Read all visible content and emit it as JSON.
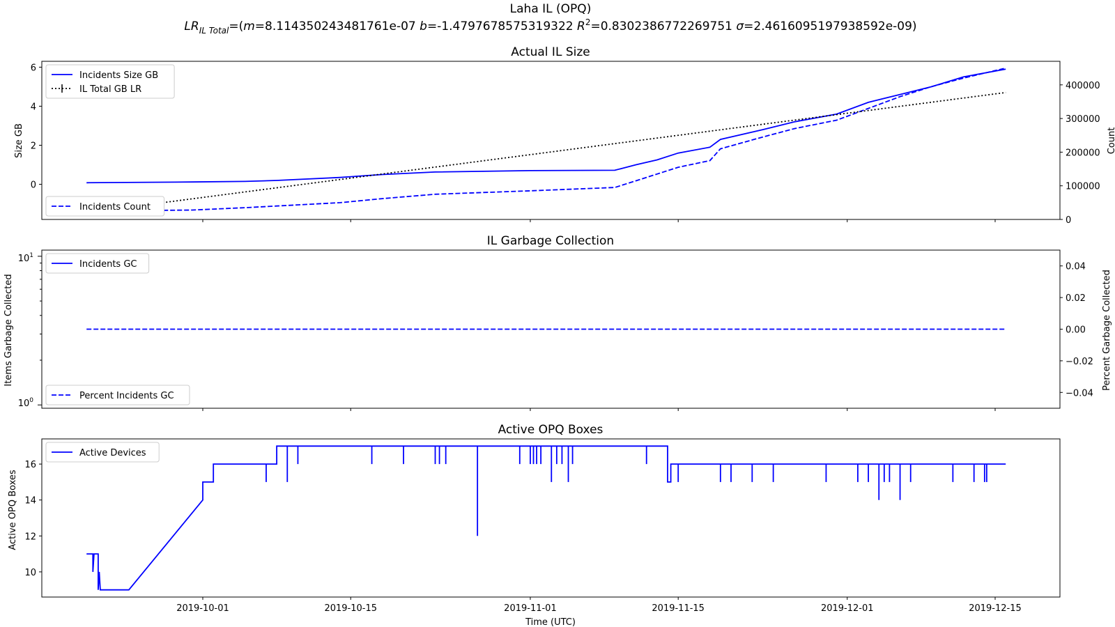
{
  "figure": {
    "title": "Laha IL (OPQ)",
    "subtitle": {
      "lr": "LR",
      "lr_sub": "IL Total",
      "eq_open": "=(",
      "m_label": "m",
      "m_value": "=8.114350243481761e-07 ",
      "b_label": "b",
      "b_value": "=-1.4797678575319322 ",
      "r_label": "R",
      "r_sup": "2",
      "r_value": "=0.8302386772269751 ",
      "sigma_label": "σ",
      "sigma_value": "=2.4616095197938592e-09)"
    },
    "xlabel": "Time (UTC)",
    "x_ticks": [
      "2019-10-01",
      "2019-10-15",
      "2019-11-01",
      "2019-11-15",
      "2019-12-01",
      "2019-12-15"
    ]
  },
  "colors": {
    "series": "#0000ff",
    "regression": "#000000",
    "axes": "#000000",
    "background": "#ffffff"
  },
  "chart_data": [
    {
      "type": "line",
      "title": "Actual IL Size",
      "xlabel": "",
      "ylabel": "Size GB",
      "ylabel_right": "Count",
      "ylim": [
        -1.8,
        6.3
      ],
      "ylim_right": [
        0,
        470000
      ],
      "y_ticks": [
        "6",
        "4",
        "2",
        "0"
      ],
      "y_ticks_right": [
        "400000",
        "300000",
        "200000",
        "100000",
        "0"
      ],
      "legend": {
        "upper_left": [
          "Incidents Size GB",
          "IL Total GB LR"
        ],
        "lower_left": [
          "Incidents Count"
        ]
      },
      "series": [
        {
          "name": "Incidents Size GB",
          "axis": "left",
          "style": "solid",
          "points": [
            [
              "2019-09-20",
              0.08
            ],
            [
              "2019-09-30",
              0.12
            ],
            [
              "2019-10-05",
              0.15
            ],
            [
              "2019-10-08",
              0.2
            ],
            [
              "2019-10-14",
              0.35
            ],
            [
              "2019-10-18",
              0.5
            ],
            [
              "2019-10-23",
              0.63
            ],
            [
              "2019-11-01",
              0.7
            ],
            [
              "2019-11-09",
              0.72
            ],
            [
              "2019-11-11",
              1.0
            ],
            [
              "2019-11-13",
              1.25
            ],
            [
              "2019-11-15",
              1.6
            ],
            [
              "2019-11-18",
              1.9
            ],
            [
              "2019-11-19",
              2.3
            ],
            [
              "2019-11-23",
              2.8
            ],
            [
              "2019-11-26",
              3.2
            ],
            [
              "2019-11-30",
              3.6
            ],
            [
              "2019-12-03",
              4.2
            ],
            [
              "2019-12-06",
              4.6
            ],
            [
              "2019-12-09",
              5.0
            ],
            [
              "2019-12-12",
              5.5
            ],
            [
              "2019-12-16",
              5.9
            ]
          ]
        },
        {
          "name": "Incidents Count",
          "axis": "right",
          "style": "dashed",
          "points": [
            [
              "2019-09-20",
              25000
            ],
            [
              "2019-09-30",
              28000
            ],
            [
              "2019-10-05",
              35000
            ],
            [
              "2019-10-08",
              40000
            ],
            [
              "2019-10-14",
              50000
            ],
            [
              "2019-10-18",
              62000
            ],
            [
              "2019-10-23",
              75000
            ],
            [
              "2019-11-01",
              85000
            ],
            [
              "2019-11-09",
              95000
            ],
            [
              "2019-11-11",
              115000
            ],
            [
              "2019-11-13",
              135000
            ],
            [
              "2019-11-15",
              155000
            ],
            [
              "2019-11-18",
              175000
            ],
            [
              "2019-11-19",
              210000
            ],
            [
              "2019-11-23",
              245000
            ],
            [
              "2019-11-26",
              270000
            ],
            [
              "2019-11-30",
              295000
            ],
            [
              "2019-12-03",
              330000
            ],
            [
              "2019-12-06",
              365000
            ],
            [
              "2019-12-09",
              395000
            ],
            [
              "2019-12-12",
              420000
            ],
            [
              "2019-12-16",
              450000
            ]
          ]
        },
        {
          "name": "IL Total GB LR",
          "axis": "left",
          "style": "dotted",
          "points": [
            [
              "2019-09-20",
              -1.45
            ],
            [
              "2019-12-16",
              4.7
            ]
          ]
        }
      ]
    },
    {
      "type": "line",
      "title": "IL Garbage Collection",
      "xlabel": "",
      "ylabel": "Items Garbage Collected",
      "ylabel_right": "Percent Garbage Collected",
      "yscale": "log",
      "ylim": [
        0.95,
        11
      ],
      "ylim_right": [
        -0.05,
        0.05
      ],
      "y_ticks_right": [
        "0.04",
        "0.02",
        "0.00",
        "−0.02",
        "−0.04"
      ],
      "legend": {
        "upper_left": [
          "Incidents GC"
        ],
        "lower_left": [
          "Percent Incidents GC"
        ]
      },
      "series": [
        {
          "name": "Percent Incidents GC",
          "axis": "right",
          "style": "dashed",
          "points": [
            [
              "2019-09-20",
              0
            ],
            [
              "2019-12-16",
              0
            ]
          ]
        }
      ]
    },
    {
      "type": "line",
      "title": "Active OPQ Boxes",
      "xlabel": "Time (UTC)",
      "ylabel": "Active OPQ Boxes",
      "ylim": [
        8.6,
        17.4
      ],
      "y_ticks": [
        "16",
        "14",
        "12",
        "10"
      ],
      "legend": {
        "upper_left": [
          "Active Devices"
        ]
      },
      "series": [
        {
          "name": "Active Devices",
          "style": "solid",
          "points": [
            [
              "2019-09-20",
              11
            ],
            [
              "2019-09-20.6",
              11
            ],
            [
              "2019-09-20.6",
              10
            ],
            [
              "2019-09-20.7",
              11
            ],
            [
              "2019-09-21.1",
              11
            ],
            [
              "2019-09-21.1",
              9
            ],
            [
              "2019-09-21.2",
              10
            ],
            [
              "2019-09-21.3",
              9
            ],
            [
              "2019-09-24",
              9
            ],
            [
              "2019-10-01",
              14
            ],
            [
              "2019-10-01",
              15
            ],
            [
              "2019-10-02",
              15
            ],
            [
              "2019-10-02",
              16
            ],
            [
              "2019-10-08",
              16
            ],
            [
              "2019-10-08",
              17
            ],
            [
              "2019-11-14",
              17
            ],
            [
              "2019-11-14",
              15
            ],
            [
              "2019-11-14.3",
              15
            ],
            [
              "2019-11-14.3",
              16
            ],
            [
              "2019-12-16",
              16
            ]
          ],
          "dips": [
            [
              "2019-10-07",
              15
            ],
            [
              "2019-10-09",
              15
            ],
            [
              "2019-10-10",
              16
            ],
            [
              "2019-10-17",
              16
            ],
            [
              "2019-10-20",
              16
            ],
            [
              "2019-10-23",
              16
            ],
            [
              "2019-10-23.4",
              16
            ],
            [
              "2019-10-24",
              16
            ],
            [
              "2019-10-27",
              12
            ],
            [
              "2019-10-31",
              16
            ],
            [
              "2019-11-01",
              16
            ],
            [
              "2019-11-01.3",
              16
            ],
            [
              "2019-11-01.6",
              16
            ],
            [
              "2019-11-02",
              16
            ],
            [
              "2019-11-03",
              15
            ],
            [
              "2019-11-03.5",
              16
            ],
            [
              "2019-11-04",
              16
            ],
            [
              "2019-11-04.6",
              15
            ],
            [
              "2019-11-05",
              16
            ],
            [
              "2019-11-12",
              16
            ],
            [
              "2019-11-15",
              15
            ],
            [
              "2019-11-19",
              15
            ],
            [
              "2019-11-20",
              15
            ],
            [
              "2019-11-22",
              15
            ],
            [
              "2019-11-24",
              15
            ],
            [
              "2019-11-29",
              15
            ],
            [
              "2019-12-02",
              15
            ],
            [
              "2019-12-03",
              15
            ],
            [
              "2019-12-04",
              14
            ],
            [
              "2019-12-04.5",
              15
            ],
            [
              "2019-12-05",
              15
            ],
            [
              "2019-12-06",
              14
            ],
            [
              "2019-12-07",
              15
            ],
            [
              "2019-12-11",
              15
            ],
            [
              "2019-12-13",
              15
            ],
            [
              "2019-12-14",
              15
            ],
            [
              "2019-12-14.2",
              15
            ]
          ]
        }
      ]
    }
  ]
}
